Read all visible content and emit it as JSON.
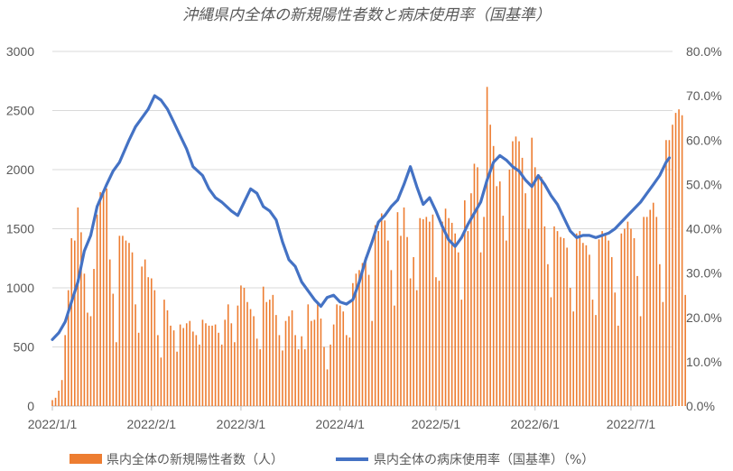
{
  "chart_data": {
    "type": "bar+line",
    "title": "沖縄県内全体の新規陽性者数と病床使用率（国基準）",
    "x_tick_labels": [
      "2022/1/1",
      "2022/2/1",
      "2022/3/1",
      "2022/4/1",
      "2022/5/1",
      "2022/6/1",
      "2022/7/1"
    ],
    "x_tick_days": [
      0,
      31,
      59,
      90,
      120,
      151,
      181
    ],
    "x_range_days": [
      0,
      194
    ],
    "y_left": {
      "range": [
        0,
        3000
      ],
      "ticks": [
        "0",
        "500",
        "1000",
        "1500",
        "2000",
        "2500",
        "3000"
      ]
    },
    "y_right": {
      "range": [
        0,
        80
      ],
      "ticks": [
        "0.0%",
        "10.0%",
        "20.0%",
        "30.0%",
        "40.0%",
        "50.0%",
        "60.0%",
        "70.0%",
        "80.0%"
      ]
    },
    "grid": true,
    "legend_position": "bottom",
    "series": [
      {
        "name": "県内全体の新規陽性者数（人）",
        "type": "bar",
        "axis": "left",
        "color": "#ED7D31",
        "start_date": "2022-01-01",
        "values": [
          50,
          70,
          130,
          220,
          600,
          980,
          1420,
          1400,
          1680,
          1470,
          1120,
          790,
          760,
          1160,
          1620,
          1810,
          1800,
          1840,
          1240,
          950,
          540,
          1440,
          1440,
          1400,
          1380,
          1300,
          860,
          620,
          1180,
          1240,
          1090,
          1080,
          980,
          600,
          410,
          900,
          810,
          680,
          640,
          460,
          690,
          660,
          700,
          720,
          630,
          600,
          520,
          730,
          700,
          680,
          680,
          690,
          620,
          520,
          730,
          860,
          700,
          540,
          850,
          1020,
          1000,
          880,
          820,
          760,
          570,
          480,
          1010,
          880,
          900,
          940,
          770,
          600,
          470,
          720,
          760,
          810,
          600,
          480,
          590,
          480,
          860,
          720,
          730,
          880,
          740,
          500,
          310,
          520,
          690,
          860,
          850,
          800,
          600,
          580,
          1040,
          1120,
          1150,
          1210,
          1260,
          1110,
          720,
          1530,
          1480,
          1630,
          1570,
          1400,
          1150,
          850,
          1640,
          1440,
          1680,
          1430,
          1080,
          1260,
          980,
          1590,
          1580,
          1600,
          1560,
          1620,
          1090,
          1060,
          1560,
          1670,
          1590,
          1550,
          1460,
          1300,
          900,
          1740,
          1480,
          1800,
          2050,
          2020,
          1300,
          1600,
          2700,
          2380,
          2200,
          1860,
          1900,
          1610,
          1400,
          2000,
          2240,
          2280,
          2240,
          2100,
          1800,
          1500,
          2270,
          2020,
          1940,
          1940,
          1520,
          1200,
          920,
          1520,
          1480,
          1430,
          1420,
          1340,
          1000,
          800,
          1460,
          1480,
          1380,
          1360,
          1280,
          900,
          770,
          1410,
          1480,
          1460,
          1400,
          1260,
          960,
          680,
          1460,
          1500,
          1560,
          1500,
          1420,
          1100,
          760,
          1600,
          1600,
          1660,
          1720,
          1600,
          1200,
          880,
          2250,
          2250,
          2380,
          2480,
          2510,
          2460,
          940
        ]
      },
      {
        "name": "県内全体の病床使用率（国基準）（%）",
        "type": "line",
        "axis": "right",
        "color": "#4472C4",
        "points": [
          [
            0,
            15.0
          ],
          [
            2,
            16.5
          ],
          [
            4,
            19.0
          ],
          [
            6,
            23.5
          ],
          [
            8,
            28.0
          ],
          [
            10,
            35.0
          ],
          [
            12,
            38.5
          ],
          [
            14,
            45.0
          ],
          [
            17,
            50.0
          ],
          [
            19,
            53.0
          ],
          [
            21,
            55.0
          ],
          [
            24,
            60.0
          ],
          [
            26,
            63.0
          ],
          [
            28,
            65.0
          ],
          [
            30,
            67.0
          ],
          [
            32,
            70.0
          ],
          [
            34,
            69.0
          ],
          [
            36,
            67.0
          ],
          [
            38,
            64.0
          ],
          [
            40,
            61.0
          ],
          [
            42,
            58.0
          ],
          [
            44,
            54.0
          ],
          [
            47,
            52.0
          ],
          [
            49,
            49.0
          ],
          [
            51,
            47.0
          ],
          [
            53,
            46.0
          ],
          [
            56,
            44.0
          ],
          [
            58,
            43.0
          ],
          [
            60,
            46.0
          ],
          [
            62,
            49.0
          ],
          [
            64,
            48.0
          ],
          [
            66,
            45.0
          ],
          [
            68,
            44.0
          ],
          [
            70,
            42.0
          ],
          [
            72,
            37.0
          ],
          [
            74,
            33.0
          ],
          [
            76,
            31.5
          ],
          [
            78,
            28.0
          ],
          [
            80,
            26.0
          ],
          [
            82,
            24.0
          ],
          [
            84,
            22.5
          ],
          [
            86,
            24.5
          ],
          [
            88,
            25.0
          ],
          [
            90,
            23.5
          ],
          [
            92,
            23.0
          ],
          [
            94,
            24.0
          ],
          [
            96,
            28.0
          ],
          [
            98,
            33.0
          ],
          [
            100,
            37.0
          ],
          [
            102,
            41.5
          ],
          [
            104,
            43.0
          ],
          [
            106,
            45.0
          ],
          [
            108,
            46.5
          ],
          [
            110,
            50.0
          ],
          [
            112,
            54.0
          ],
          [
            114,
            49.5
          ],
          [
            116,
            45.5
          ],
          [
            118,
            47.0
          ],
          [
            120,
            44.0
          ],
          [
            122,
            40.5
          ],
          [
            124,
            37.5
          ],
          [
            126,
            36.0
          ],
          [
            128,
            38.0
          ],
          [
            130,
            41.0
          ],
          [
            132,
            43.5
          ],
          [
            134,
            46.0
          ],
          [
            136,
            51.0
          ],
          [
            138,
            55.0
          ],
          [
            140,
            56.5
          ],
          [
            142,
            55.5
          ],
          [
            144,
            54.0
          ],
          [
            146,
            53.0
          ],
          [
            148,
            51.0
          ],
          [
            150,
            49.5
          ],
          [
            152,
            52.0
          ],
          [
            154,
            50.0
          ],
          [
            156,
            47.5
          ],
          [
            158,
            45.5
          ],
          [
            160,
            42.5
          ],
          [
            162,
            39.5
          ],
          [
            164,
            38.0
          ],
          [
            166,
            38.5
          ],
          [
            168,
            38.5
          ],
          [
            170,
            38.0
          ],
          [
            172,
            38.5
          ],
          [
            174,
            39.0
          ],
          [
            176,
            40.0
          ],
          [
            178,
            41.5
          ],
          [
            180,
            43.0
          ],
          [
            182,
            44.5
          ],
          [
            184,
            46.0
          ],
          [
            186,
            48.0
          ],
          [
            188,
            50.0
          ],
          [
            190,
            52.0
          ],
          [
            192,
            55.0
          ],
          [
            193,
            56.0
          ]
        ]
      }
    ]
  }
}
